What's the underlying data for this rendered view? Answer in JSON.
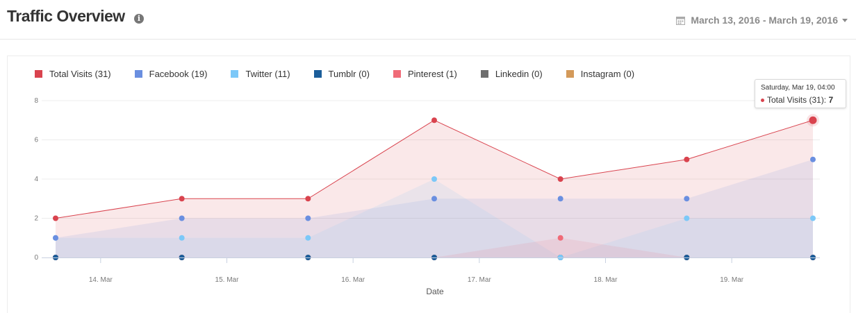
{
  "header": {
    "title": "Traffic Overview",
    "info_icon": "info-icon",
    "date_range": "March 13, 2016 - March 19, 2016",
    "date_icon": "calendar-icon"
  },
  "tooltip": {
    "date": "Saturday, Mar 19, 04:00",
    "series": "Total Visits (31):",
    "value": "7",
    "color": "#d9434e"
  },
  "chart_data": {
    "type": "area",
    "xlabel": "Date",
    "ylabel": "",
    "ylim": [
      0,
      8
    ],
    "yticks": [
      "0",
      "2",
      "4",
      "6",
      "8"
    ],
    "x": [
      "Mar 13",
      "Mar 14",
      "Mar 15",
      "Mar 16",
      "Mar 17",
      "Mar 18",
      "Mar 19"
    ],
    "xtick_labels": [
      "14. Mar",
      "15. Mar",
      "16. Mar",
      "17. Mar",
      "18. Mar",
      "19. Mar"
    ],
    "grid": true,
    "legend_position": "top-left",
    "series": [
      {
        "name": "Total Visits (31)",
        "color": "#d9434e",
        "values": [
          2,
          3,
          3,
          7,
          4,
          5,
          7
        ]
      },
      {
        "name": "Facebook (19)",
        "color": "#6a8fe0",
        "values": [
          1,
          2,
          2,
          3,
          3,
          3,
          5
        ]
      },
      {
        "name": "Twitter (11)",
        "color": "#7cc8f8",
        "values": [
          1,
          1,
          1,
          4,
          0,
          2,
          2
        ]
      },
      {
        "name": "Tumblr (0)",
        "color": "#1b5e9a",
        "values": [
          0,
          0,
          0,
          0,
          0,
          0,
          0
        ]
      },
      {
        "name": "Pinterest (1)",
        "color": "#f06b78",
        "values": [
          0,
          0,
          0,
          0,
          1,
          0,
          0
        ]
      },
      {
        "name": "Linkedin (0)",
        "color": "#6d6d6d",
        "values": [
          0,
          0,
          0,
          0,
          0,
          0,
          0
        ]
      },
      {
        "name": "Instagram (0)",
        "color": "#d49a5a",
        "values": [
          0,
          0,
          0,
          0,
          0,
          0,
          0
        ]
      }
    ]
  }
}
